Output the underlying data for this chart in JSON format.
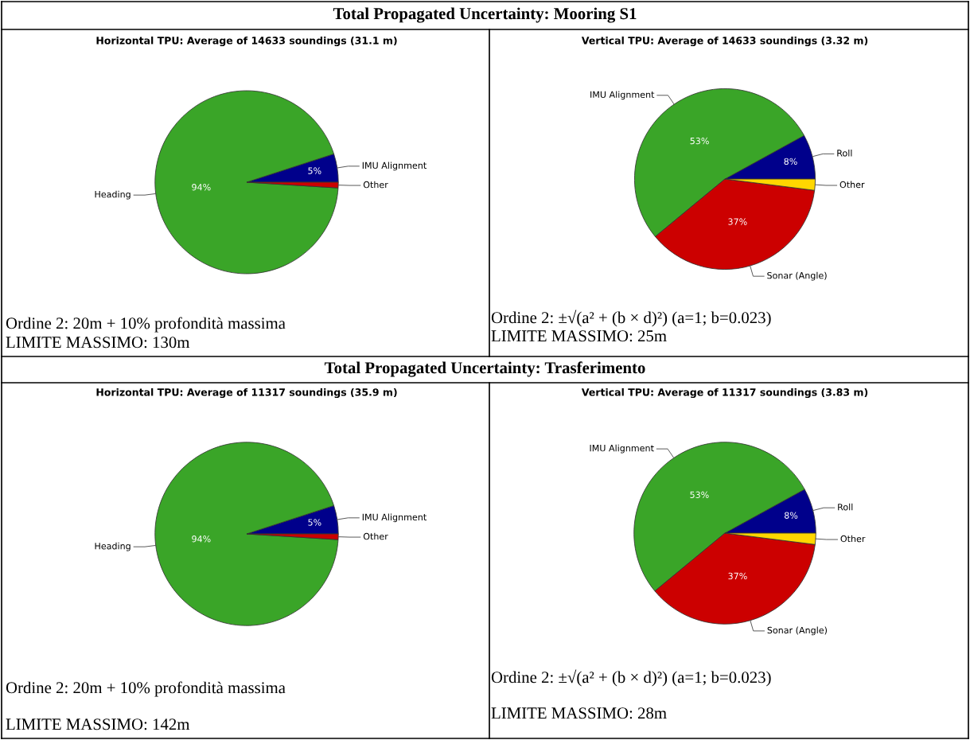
{
  "chart_data": [
    {
      "type": "pie",
      "title": "Horizontal TPU: Average of 14633 soundings (31.1 m)",
      "categories": [
        "IMU Alignment",
        "Heading",
        "Other"
      ],
      "values": [
        5,
        94,
        1
      ],
      "colors": [
        "#00008b",
        "#3aa528",
        "#cc0000"
      ],
      "value_labels": [
        "5%",
        "94%",
        null
      ],
      "annotations": [
        "Total Propagated Uncertainty: Mooring S1",
        "Ordine 2: 20m + 10% profondità massima",
        "LIMITE MASSIMO: 130m"
      ]
    },
    {
      "type": "pie",
      "title": "Vertical TPU: Average of 14633 soundings (3.32 m)",
      "categories": [
        "Roll",
        "IMU Alignment",
        "Sonar (Angle)",
        "Other"
      ],
      "values": [
        8,
        53,
        37,
        2
      ],
      "colors": [
        "#00008b",
        "#3aa528",
        "#cc0000",
        "#ffd700"
      ],
      "value_labels": [
        "8%",
        "53%",
        "37%",
        null
      ],
      "annotations": [
        "Ordine 2: ±√(a² + (b × d)²) (a=1; b=0.023)",
        "LIMITE MASSIMO: 25m"
      ]
    },
    {
      "type": "pie",
      "title": "Horizontal TPU: Average of 11317 soundings (35.9 m)",
      "categories": [
        "IMU Alignment",
        "Heading",
        "Other"
      ],
      "values": [
        5,
        94,
        1
      ],
      "colors": [
        "#00008b",
        "#3aa528",
        "#cc0000"
      ],
      "value_labels": [
        "5%",
        "94%",
        null
      ],
      "annotations": [
        "Total Propagated Uncertainty: Trasferimento",
        "Ordine 2: 20m + 10% profondità massima",
        "LIMITE MASSIMO: 142m"
      ]
    },
    {
      "type": "pie",
      "title": "Vertical TPU: Average of 11317 soundings (3.83 m)",
      "categories": [
        "Roll",
        "IMU Alignment",
        "Sonar (Angle)",
        "Other"
      ],
      "values": [
        8,
        53,
        37,
        2
      ],
      "colors": [
        "#00008b",
        "#3aa528",
        "#cc0000",
        "#ffd700"
      ],
      "value_labels": [
        "8%",
        "53%",
        "37%",
        null
      ],
      "annotations": [
        "Ordine 2: ±√(a² + (b × d)²) (a=1; b=0.023)",
        "LIMITE MASSIMO: 28m"
      ]
    }
  ]
}
